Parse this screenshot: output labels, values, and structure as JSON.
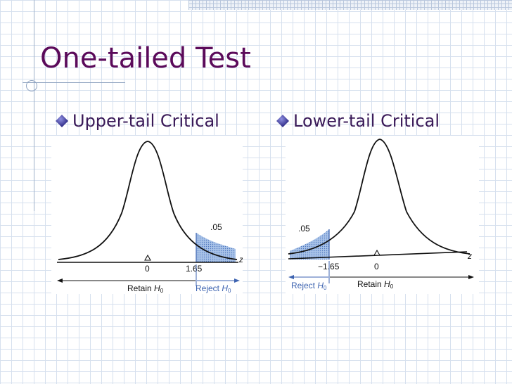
{
  "slide": {
    "title": "One-tailed Test"
  },
  "bullets": {
    "left": "Upper-tail Critical",
    "right": "Lower-tail Critical"
  },
  "upper_panel": {
    "area_label": ".05",
    "axis_var": "z",
    "mean_label": "0",
    "critical_label": "1.65",
    "retain_text": "Retain",
    "reject_text": "Reject",
    "h_symbol": "H",
    "h_sub": "0"
  },
  "lower_panel": {
    "area_label": ".05",
    "axis_var": "z",
    "mean_label": "0",
    "critical_label": "−1.65",
    "retain_text": "Retain",
    "reject_text": "Reject",
    "h_symbol": "H",
    "h_sub": "0"
  },
  "colors": {
    "title": "#5b0a5a",
    "bullet_text": "#3a1a58",
    "bullet_diamond": "#2d2a8a",
    "reject_blue": "#3d63b0",
    "shade_fill": "#7da4d8"
  }
}
